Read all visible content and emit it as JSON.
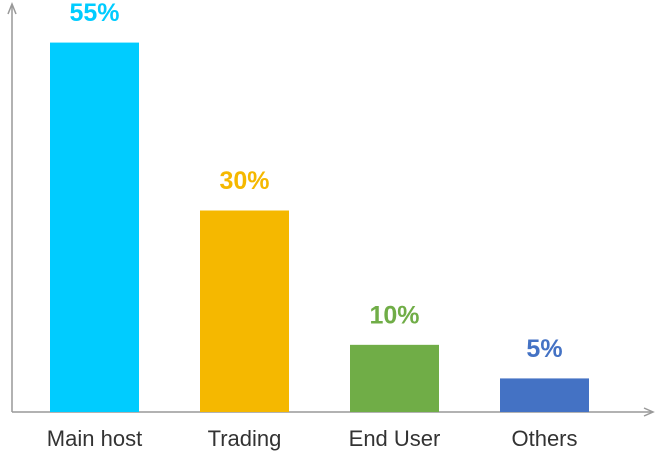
{
  "chart_data": {
    "type": "bar",
    "categories": [
      "Main host",
      "Trading",
      "End User",
      "Others"
    ],
    "values": [
      55,
      30,
      10,
      5
    ],
    "value_labels": [
      "55%",
      "30%",
      "10%",
      "5%"
    ],
    "colors": [
      "#00ccff",
      "#f5b800",
      "#70ad47",
      "#4472c4"
    ],
    "ylim": [
      0,
      60
    ]
  }
}
